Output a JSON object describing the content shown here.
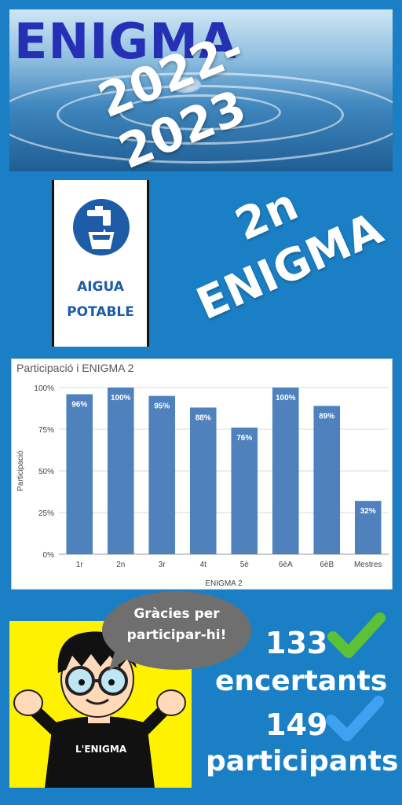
{
  "banner": {
    "title": "ENIGMA",
    "year": "2022-2023"
  },
  "sign": {
    "line1": "AIGUA",
    "line2": "POTABLE"
  },
  "enigma_label": {
    "line1": "2n",
    "line2": "ENIGMA"
  },
  "chart_data": {
    "type": "bar",
    "title": "Participació i ENIGMA 2",
    "xlabel": "ENIGMA 2",
    "ylabel": "Participació",
    "categories": [
      "1r",
      "2n",
      "3r",
      "4t",
      "5è",
      "6èA",
      "6èB",
      "Mestres"
    ],
    "values": [
      96,
      100,
      95,
      88,
      76,
      100,
      89,
      32
    ],
    "data_labels": [
      "96%",
      "100%",
      "95%",
      "88%",
      "76%",
      "100%",
      "89%",
      "32%"
    ],
    "yticks": [
      "0%",
      "25%",
      "50%",
      "75%",
      "100%"
    ],
    "ylim": [
      0,
      100
    ],
    "grid": true,
    "bar_color": "#4f81bd"
  },
  "bubble": {
    "line1": "Gràcies per",
    "line2": "participar-hi!"
  },
  "shirt_text": "L'ENIGMA",
  "stats": {
    "correct_count": "133",
    "correct_label": "encertants",
    "participants_count": "149",
    "participants_label": "participants"
  },
  "colors": {
    "background": "#1a7fc4",
    "title_blue": "#2630b5",
    "check_green": "#5bc236",
    "check_blue": "#3fa2f0"
  }
}
